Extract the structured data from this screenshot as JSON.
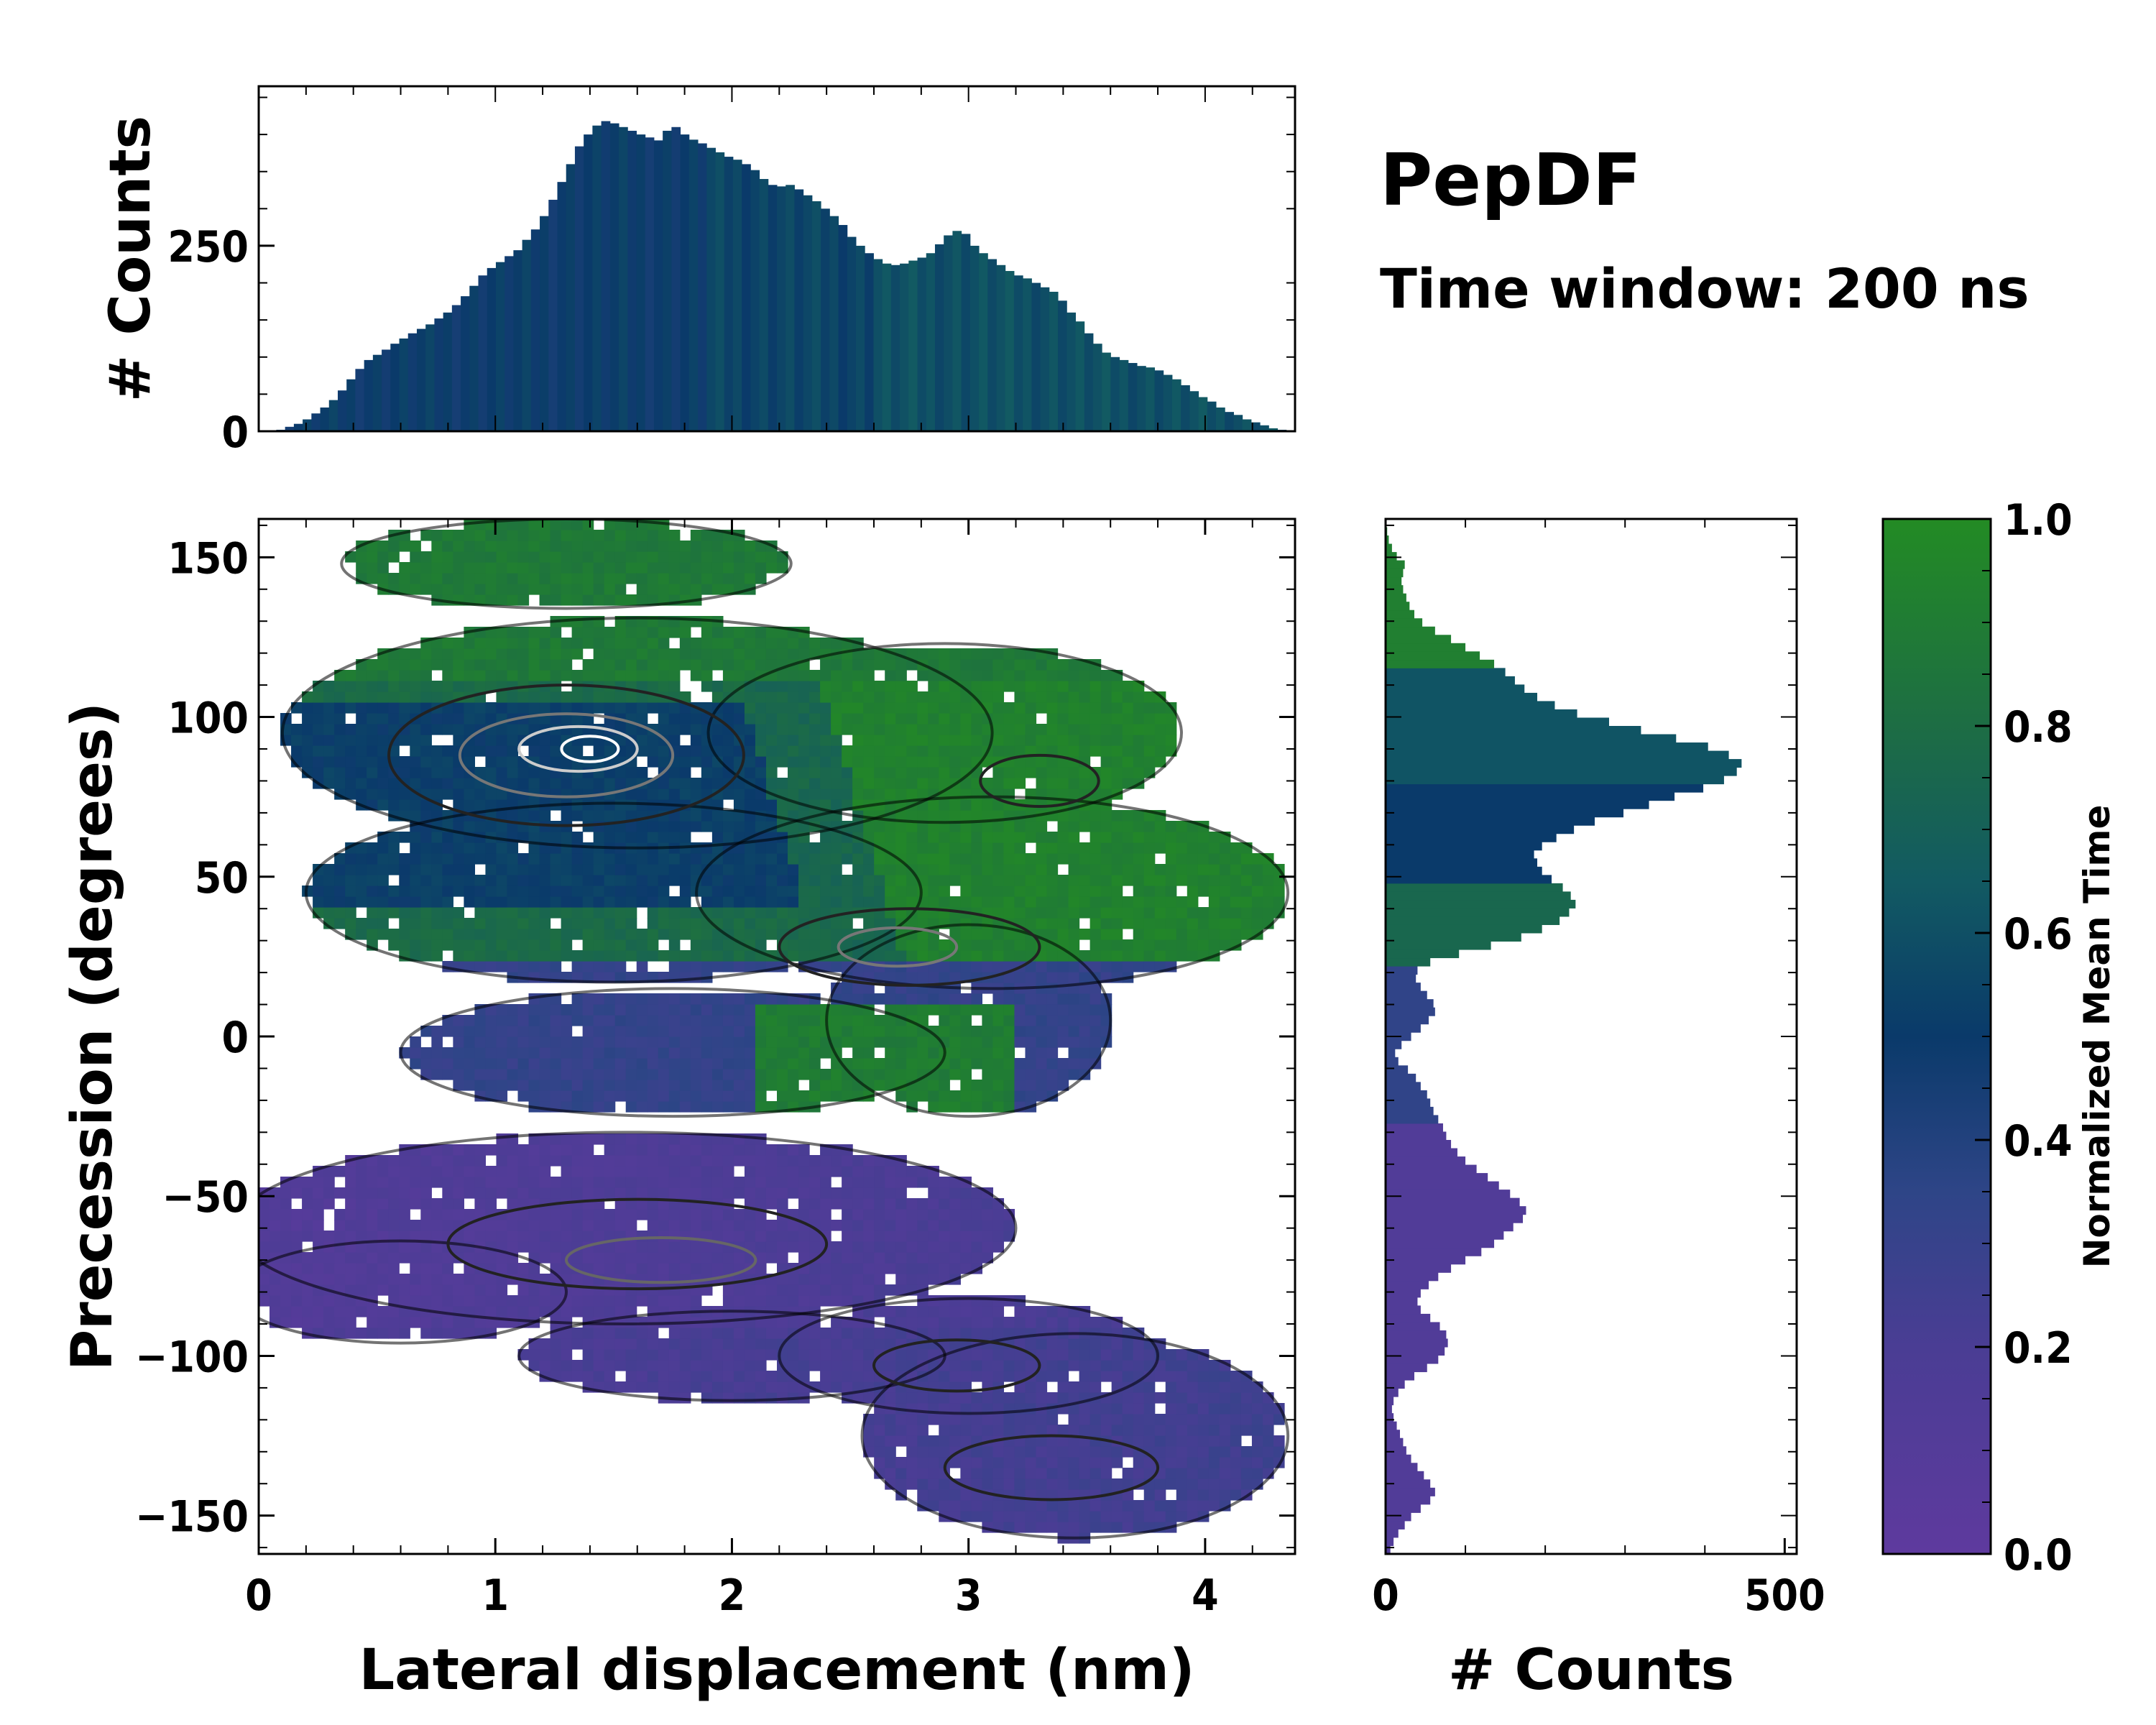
{
  "title": "PepDF",
  "subtitle": "Time window: 200 ns",
  "chart_data": {
    "main": {
      "type": "heatmap",
      "xlabel": "Lateral displacement (nm)",
      "ylabel": "Precession (degrees)",
      "xlim": [
        0,
        4.38
      ],
      "ylim": [
        -162,
        162
      ],
      "xticks": [
        0,
        1,
        2,
        3,
        4
      ],
      "xtick_labels": [
        "0",
        "1",
        "2",
        "3",
        "4"
      ],
      "yticks": [
        150,
        100,
        50,
        0,
        -50,
        -100,
        -150
      ],
      "ytick_labels": [
        "150",
        "100",
        "50",
        "0",
        "−50",
        "−100",
        "−150"
      ],
      "color_meaning": "Normalized Mean Time",
      "contours": "black outline of occupied region with gray density contours",
      "regions": [
        {
          "name": "upper-left cluster",
          "x_range": [
            0.1,
            3.7
          ],
          "y_range": [
            20,
            160
          ],
          "mean_time": 0.55
        },
        {
          "name": "upper-right lobe",
          "x_range": [
            2.2,
            4.3
          ],
          "y_range": [
            -30,
            110
          ],
          "mean_time": 0.92
        },
        {
          "name": "middle band",
          "x_range": [
            0.6,
            3.2
          ],
          "y_range": [
            -30,
            20
          ],
          "mean_time": 0.3
        },
        {
          "name": "lower-left lobe",
          "x_range": [
            0.0,
            3.3
          ],
          "y_range": [
            -115,
            -30
          ],
          "mean_time": 0.12
        },
        {
          "name": "lower-right lobe",
          "x_range": [
            2.6,
            4.3
          ],
          "y_range": [
            -160,
            -90
          ],
          "mean_time": 0.22
        }
      ]
    },
    "top_histogram": {
      "type": "bar",
      "ylabel": "# Counts",
      "yticks": [
        0,
        250
      ],
      "ytick_labels": [
        "0",
        "250"
      ],
      "ylim": [
        0,
        465
      ],
      "x_range": [
        0,
        4.38
      ],
      "values": [
        0,
        0,
        2,
        6,
        10,
        16,
        24,
        32,
        42,
        55,
        70,
        84,
        96,
        103,
        110,
        118,
        125,
        132,
        138,
        144,
        152,
        160,
        170,
        182,
        196,
        210,
        220,
        228,
        236,
        244,
        258,
        272,
        290,
        312,
        336,
        360,
        384,
        400,
        412,
        418,
        415,
        410,
        405,
        400,
        396,
        392,
        405,
        410,
        400,
        393,
        388,
        382,
        376,
        370,
        366,
        360,
        352,
        340,
        332,
        330,
        332,
        326,
        318,
        310,
        300,
        290,
        278,
        262,
        250,
        240,
        232,
        226,
        224,
        226,
        230,
        234,
        240,
        252,
        264,
        270,
        266,
        250,
        240,
        232,
        224,
        216,
        210,
        206,
        200,
        194,
        188,
        176,
        160,
        148,
        132,
        118,
        106,
        100,
        96,
        92,
        88,
        86,
        82,
        76,
        70,
        62,
        54,
        46,
        40,
        32,
        26,
        22,
        16,
        12,
        8,
        4,
        2,
        0
      ],
      "color_by": "Normalized Mean Time"
    },
    "right_histogram": {
      "type": "bar",
      "orientation": "horizontal",
      "xlabel": "# Counts",
      "xticks": [
        0,
        500
      ],
      "xtick_labels": [
        "0",
        "500"
      ],
      "xlim": [
        0,
        515
      ],
      "y_range": [
        -162,
        162
      ],
      "values": [
        6,
        10,
        16,
        24,
        32,
        44,
        56,
        62,
        56,
        48,
        40,
        32,
        26,
        22,
        18,
        14,
        10,
        8,
        10,
        16,
        24,
        36,
        52,
        66,
        74,
        78,
        76,
        68,
        56,
        44,
        40,
        44,
        54,
        66,
        82,
        100,
        120,
        136,
        148,
        160,
        172,
        176,
        168,
        156,
        142,
        128,
        114,
        100,
        90,
        82,
        76,
        72,
        66,
        60,
        56,
        52,
        44,
        38,
        28,
        16,
        12,
        20,
        32,
        44,
        54,
        62,
        60,
        52,
        44,
        38,
        40,
        56,
        92,
        132,
        170,
        196,
        218,
        230,
        238,
        232,
        222,
        208,
        196,
        190,
        186,
        196,
        214,
        236,
        262,
        298,
        330,
        362,
        398,
        424,
        440,
        446,
        430,
        404,
        364,
        320,
        280,
        240,
        212,
        190,
        174,
        162,
        150,
        136,
        118,
        100,
        82,
        62,
        46,
        36,
        30,
        26,
        22,
        20,
        22,
        24,
        14,
        8,
        4,
        2,
        0
      ],
      "color_by": "Normalized Mean Time"
    },
    "colorbar": {
      "label": "Normalized Mean Time",
      "range": [
        0,
        1
      ],
      "ticks": [
        0.0,
        0.2,
        0.4,
        0.6,
        0.8,
        1.0
      ],
      "tick_labels": [
        "0.0",
        "0.2",
        "0.4",
        "0.6",
        "0.8",
        "1.0"
      ],
      "stops": [
        {
          "value": 0.0,
          "color": "#5e3a9e"
        },
        {
          "value": 0.2,
          "color": "#4a3d94"
        },
        {
          "value": 0.35,
          "color": "#2e4587"
        },
        {
          "value": 0.5,
          "color": "#0a3a6a"
        },
        {
          "value": 0.65,
          "color": "#125a62"
        },
        {
          "value": 0.8,
          "color": "#1d6d44"
        },
        {
          "value": 1.0,
          "color": "#238b24"
        }
      ]
    }
  }
}
